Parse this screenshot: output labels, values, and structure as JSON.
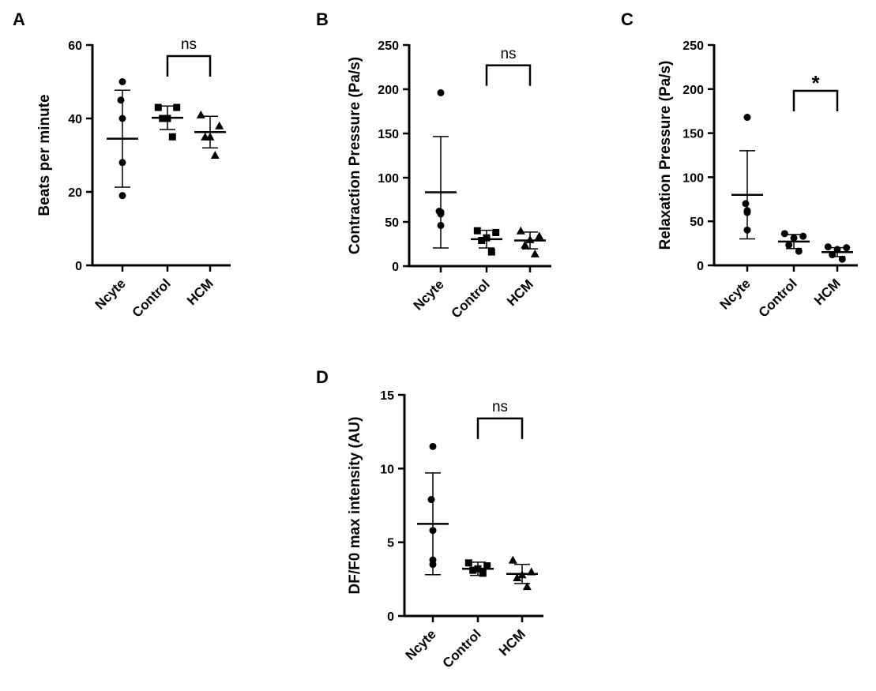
{
  "chart_data": [
    {
      "type": "scatter",
      "panel": "A",
      "ylabel": "Beats per minute",
      "ylim": [
        0,
        60
      ],
      "yticks": [
        0,
        20,
        40,
        60
      ],
      "categories": [
        "Ncyte",
        "Control",
        "HCM"
      ],
      "markers": [
        "circle",
        "square",
        "triangle"
      ],
      "points": [
        [
          50,
          45,
          40,
          28,
          19
        ],
        [
          43,
          43,
          40,
          40,
          35
        ],
        [
          41,
          38,
          35,
          35,
          30
        ]
      ],
      "means": [
        34.5,
        40.2,
        36.3
      ],
      "sd": [
        13.2,
        3.2,
        4.3
      ],
      "comparison": {
        "from": "Control",
        "to": "HCM",
        "label": "ns",
        "y": 57
      }
    },
    {
      "type": "scatter",
      "panel": "B",
      "ylabel": "Contraction Pressure (Pa/s)",
      "ylim": [
        0,
        250
      ],
      "yticks": [
        0,
        50,
        100,
        150,
        200,
        250
      ],
      "categories": [
        "Ncyte",
        "Control",
        "HCM"
      ],
      "markers": [
        "circle",
        "square",
        "triangle"
      ],
      "points": [
        [
          196,
          62,
          61,
          59,
          46
        ],
        [
          40,
          38,
          32,
          29,
          16
        ],
        [
          40,
          34,
          30,
          24,
          14
        ]
      ],
      "means": [
        83.5,
        30.5,
        29
      ],
      "sd": [
        63,
        10,
        9.5
      ],
      "comparison": {
        "from": "Control",
        "to": "HCM",
        "label": "ns",
        "y": 227
      }
    },
    {
      "type": "scatter",
      "panel": "C",
      "ylabel": "Relaxation Pressure (Pa/s)",
      "ylim": [
        0,
        250
      ],
      "yticks": [
        0,
        50,
        100,
        150,
        200,
        250
      ],
      "categories": [
        "Ncyte",
        "Control",
        "HCM"
      ],
      "markers": [
        "circle",
        "circle",
        "circle"
      ],
      "points": [
        [
          168,
          70,
          62,
          60,
          40
        ],
        [
          36,
          33,
          31,
          23,
          16
        ],
        [
          21,
          20,
          18,
          12,
          7
        ]
      ],
      "means": [
        80,
        27,
        15
      ],
      "sd": [
        50,
        8,
        5
      ],
      "comparison": {
        "from": "Control",
        "to": "HCM",
        "label": "*",
        "y": 198
      }
    },
    {
      "type": "scatter",
      "panel": "D",
      "ylabel": "DF/F0 max intensity (AU)",
      "ylim": [
        0,
        15
      ],
      "yticks": [
        0,
        5,
        10,
        15
      ],
      "categories": [
        "Ncyte",
        "Control",
        "HCM"
      ],
      "markers": [
        "circle",
        "square",
        "triangle"
      ],
      "points": [
        [
          11.5,
          7.9,
          5.8,
          3.8,
          3.5
        ],
        [
          3.6,
          3.4,
          3.2,
          3.1,
          2.9
        ],
        [
          3.8,
          3.0,
          2.8,
          2.6,
          2.0
        ]
      ],
      "means": [
        6.25,
        3.2,
        2.85
      ],
      "sd": [
        3.45,
        0.45,
        0.65
      ],
      "comparison": {
        "from": "Control",
        "to": "HCM",
        "label": "ns",
        "y": 13.4
      }
    }
  ]
}
